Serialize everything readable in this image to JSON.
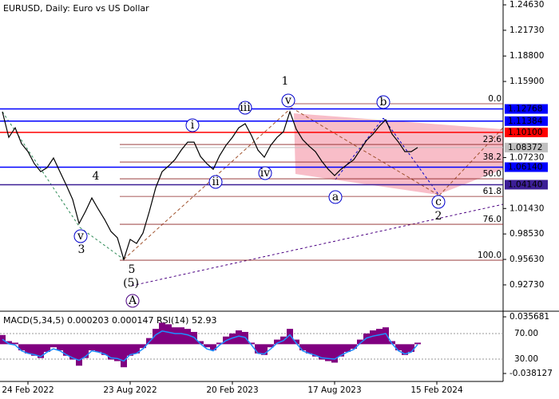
{
  "chart_data": [
    {
      "type": "line",
      "title": "EURUSD, Daily:  Euro vs US Dollar",
      "categories": [
        null,
        null,
        null,
        null,
        "24 Feb 2022",
        null,
        null,
        null,
        null,
        null,
        null,
        null,
        null,
        null,
        null,
        null,
        null,
        null,
        null,
        null,
        "23 Aug 2022",
        null,
        null,
        null,
        null,
        null,
        null,
        null,
        null,
        null,
        null,
        null,
        null,
        null,
        null,
        null,
        "20 Feb 2023",
        null,
        null,
        null,
        null,
        null,
        null,
        null,
        null,
        null,
        null,
        null,
        null,
        null,
        null,
        null,
        "17 Aug 2023",
        null,
        null,
        null,
        null,
        null,
        null,
        null,
        null,
        null,
        null,
        null,
        null,
        null,
        null,
        null,
        "15 Feb 2024",
        null,
        null,
        null,
        null,
        null,
        null,
        null,
        null,
        null,
        null
      ],
      "color": "#000000",
      "values": [
        1.1245,
        1.0954,
        1.1063,
        1.0881,
        1.0791,
        1.0654,
        1.0563,
        1.0609,
        1.0718,
        1.0563,
        1.0409,
        1.0245,
        0.9972,
        1.0109,
        1.0263,
        1.0136,
        1.0018,
        0.9881,
        0.9809,
        0.9563,
        0.9791,
        0.9745,
        0.9863,
        1.0109,
        1.0381,
        1.0563,
        1.0627,
        1.0699,
        1.0809,
        1.0899,
        1.0899,
        1.0736,
        1.0654,
        1.059,
        1.0745,
        1.0863,
        1.0954,
        1.1063,
        1.1109,
        1.0972,
        1.0809,
        1.0727,
        1.0863,
        1.0954,
        1.1018,
        1.1245,
        1.1045,
        1.0927,
        1.0854,
        1.0791,
        1.0681,
        1.059,
        1.0518,
        1.059,
        1.0645,
        1.0699,
        1.0809,
        1.0918,
        1.099,
        1.1081,
        1.1154,
        1.099,
        1.0899,
        1.0791,
        1.0791,
        1.0837,
        null,
        null,
        null,
        null,
        null,
        null,
        null,
        null,
        null,
        null,
        null,
        null,
        null
      ],
      "ylim": [
        0.8991,
        1.2518
      ],
      "yticks": [
        {
          "value": 1.2463,
          "label": "1.24630"
        },
        {
          "value": 1.2173,
          "label": "1.21730"
        },
        {
          "value": 1.188,
          "label": "1.18800"
        },
        {
          "value": 1.159,
          "label": "1.15900"
        },
        {
          "value": 1.0723,
          "label": "1.07230"
        },
        {
          "value": 1.0143,
          "label": "1.01430"
        },
        {
          "value": 0.9853,
          "label": "0.98530"
        },
        {
          "value": 0.9563,
          "label": "0.95630"
        },
        {
          "value": 0.9273,
          "label": "0.92730"
        }
      ],
      "levels": [
        {
          "value": 1.12768,
          "label": "1.12768",
          "color": "#0000ff"
        },
        {
          "value": 1.11384,
          "label": "1.11384",
          "color": "#0000ff"
        },
        {
          "value": 1.101,
          "label": "1.10100",
          "color": "#ff0000"
        },
        {
          "value": 1.08372,
          "label": "1.08372",
          "color": "#c0c0c0"
        },
        {
          "value": 1.0614,
          "label": "1.06140",
          "color": "#0000ff"
        },
        {
          "value": 1.0414,
          "label": "1.04140",
          "color": "#3c1e96"
        }
      ],
      "fib": [
        {
          "value": 1.1336,
          "label": "0.0"
        },
        {
          "value": 1.0872,
          "label": "23.6"
        },
        {
          "value": 1.0672,
          "label": "38.2"
        },
        {
          "value": 1.0481,
          "label": "50.0"
        },
        {
          "value": 1.0281,
          "label": "61.8"
        },
        {
          "value": 0.9963,
          "label": "76.0"
        },
        {
          "value": 0.9554,
          "label": "100.0"
        }
      ],
      "wave_labels": [
        "1",
        "v",
        "iii",
        "i",
        "ii",
        "iv",
        "b",
        "a",
        "c",
        "2",
        "4",
        "v",
        "3",
        "5",
        "(5)",
        "A"
      ]
    },
    {
      "type": "bar",
      "title": "MACD(5,34,5) 0.000203 0.000147 RSI(14) 52.93",
      "ylim": [
        -0.0485,
        0.0409
      ],
      "yticks": [
        0.035681,
        -0.038127
      ],
      "y2lim": [
        -5,
        102.5
      ],
      "y2ticks": [
        {
          "value": 70,
          "label": "70.00"
        },
        {
          "value": 30,
          "label": "30.00"
        }
      ],
      "series": [
        {
          "color": "#800080",
          "values": [
            0.012,
            0.004,
            0.002,
            -0.008,
            -0.012,
            -0.015,
            -0.018,
            -0.01,
            -0.004,
            -0.008,
            -0.015,
            -0.02,
            -0.028,
            -0.018,
            -0.008,
            -0.01,
            -0.014,
            -0.02,
            -0.022,
            -0.03,
            -0.015,
            -0.012,
            -0.005,
            0.008,
            0.02,
            0.028,
            0.026,
            0.022,
            0.022,
            0.02,
            0.016,
            0.004,
            -0.004,
            -0.008,
            0.002,
            0.01,
            0.014,
            0.018,
            0.016,
            0.002,
            -0.012,
            -0.014,
            -0.004,
            0.006,
            0.01,
            0.02,
            0.006,
            -0.008,
            -0.012,
            -0.016,
            -0.02,
            -0.022,
            -0.024,
            -0.016,
            -0.01,
            -0.006,
            0.006,
            0.014,
            0.018,
            0.02,
            0.022,
            0.004,
            -0.008,
            -0.014,
            -0.01,
            0.002
          ]
        },
        {
          "color": "#1e90ff",
          "axis": "y2",
          "values": [
            61,
            54,
            52,
            43,
            39,
            37,
            34,
            41,
            46,
            43,
            37,
            32,
            28,
            34,
            43,
            41,
            38,
            32,
            31,
            27,
            37,
            39,
            46,
            57,
            68,
            74,
            72,
            70,
            70,
            68,
            64,
            54,
            46,
            43,
            52,
            59,
            63,
            66,
            64,
            52,
            39,
            38,
            46,
            55,
            59,
            68,
            55,
            43,
            39,
            36,
            32,
            31,
            30,
            36,
            41,
            45,
            55,
            63,
            66,
            68,
            70,
            54,
            43,
            38,
            41,
            52.93
          ]
        }
      ]
    }
  ]
}
